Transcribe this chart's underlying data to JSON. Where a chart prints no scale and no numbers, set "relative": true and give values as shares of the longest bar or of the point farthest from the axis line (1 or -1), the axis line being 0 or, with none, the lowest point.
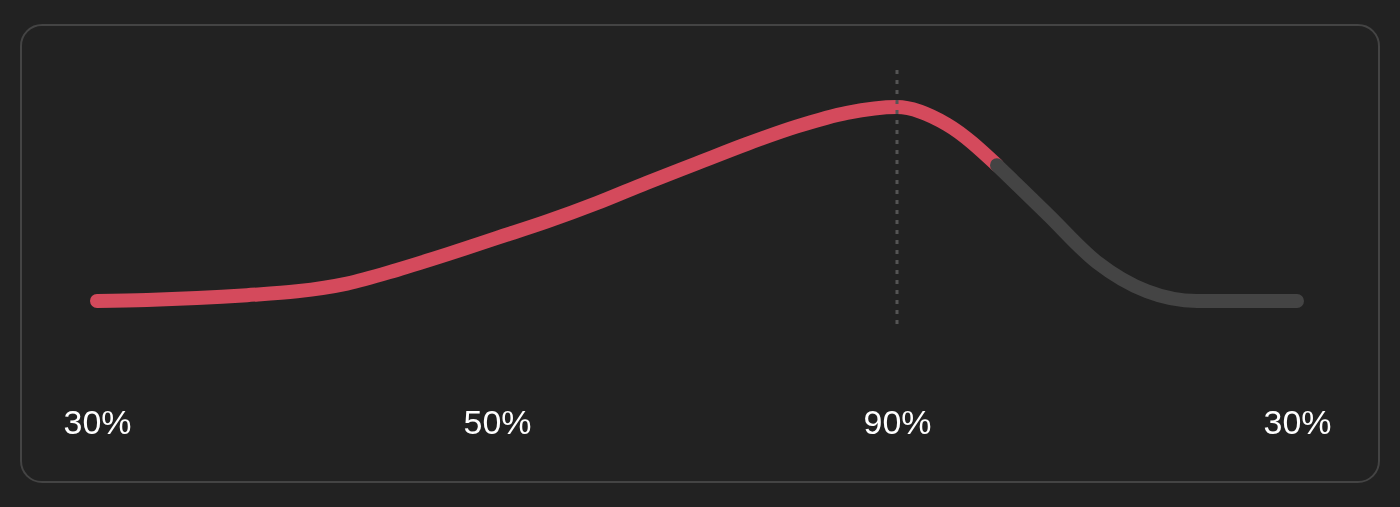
{
  "chart_data": {
    "type": "line",
    "relative": true,
    "categories": [
      "30%",
      null,
      null,
      null,
      null,
      null,
      null,
      null,
      "50%",
      null,
      null,
      null,
      null,
      null,
      null,
      null,
      "90%",
      null,
      null,
      null,
      null,
      null,
      null,
      null,
      "30%"
    ],
    "series": [
      {
        "color": "#d44a5c",
        "values": [
          0,
          0.005,
          0.015,
          0.03,
          0.05,
          0.09,
          0.16,
          0.24,
          0.325,
          0.41,
          0.505,
          0.61,
          0.71,
          0.81,
          0.9,
          0.97,
          1,
          0.91,
          0.7,
          null,
          null,
          null,
          null,
          null,
          null
        ]
      },
      {
        "color": "#444444",
        "values": [
          null,
          null,
          null,
          null,
          null,
          null,
          null,
          null,
          null,
          null,
          null,
          null,
          null,
          null,
          null,
          null,
          null,
          null,
          0.7,
          0.45,
          0.2,
          0.05,
          0,
          0,
          0
        ]
      }
    ],
    "ref_lines": [
      {
        "axis": "x",
        "value": "90%",
        "color": "#555555",
        "line_style": "dashed"
      }
    ],
    "grid": false
  }
}
